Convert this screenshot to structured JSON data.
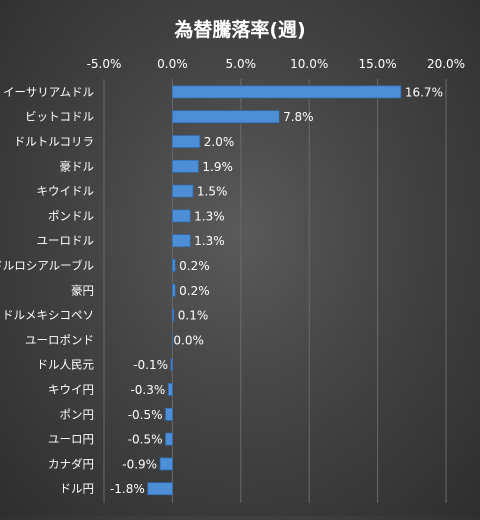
{
  "chart_data": {
    "type": "bar",
    "orientation": "horizontal",
    "title": "為替騰落率(週)",
    "xlabel": "",
    "ylabel": "",
    "xlim": [
      -5.0,
      20.0
    ],
    "x_ticks": [
      -5.0,
      0.0,
      5.0,
      10.0,
      15.0,
      20.0
    ],
    "x_tick_labels": [
      "-5.0%",
      "0.0%",
      "5.0%",
      "10.0%",
      "15.0%",
      "20.0%"
    ],
    "x_axis_position": "top",
    "grid": true,
    "bar_color": "#4d8fd6",
    "categories": [
      "イーサリアムドル",
      "ビットコドル",
      "ドルトルコリラ",
      "豪ドル",
      "キウイドル",
      "ポンドル",
      "ユーロドル",
      "ドルロシアルーブル",
      "豪円",
      "ドルメキシコペソ",
      "ユーロポンド",
      "ドル人民元",
      "キウイ円",
      "ポン円",
      "ユーロ円",
      "カナダ円",
      "ドル円"
    ],
    "values": [
      16.7,
      7.8,
      2.0,
      1.9,
      1.5,
      1.3,
      1.3,
      0.2,
      0.2,
      0.1,
      0.0,
      -0.1,
      -0.3,
      -0.5,
      -0.5,
      -0.9,
      -1.8
    ],
    "data_labels": [
      "16.7%",
      "7.8%",
      "2.0%",
      "1.9%",
      "1.5%",
      "1.3%",
      "1.3%",
      "0.2%",
      "0.2%",
      "0.1%",
      "0.0%",
      "-0.1%",
      "-0.3%",
      "-0.5%",
      "-0.5%",
      "-0.9%",
      "-1.8%"
    ]
  }
}
